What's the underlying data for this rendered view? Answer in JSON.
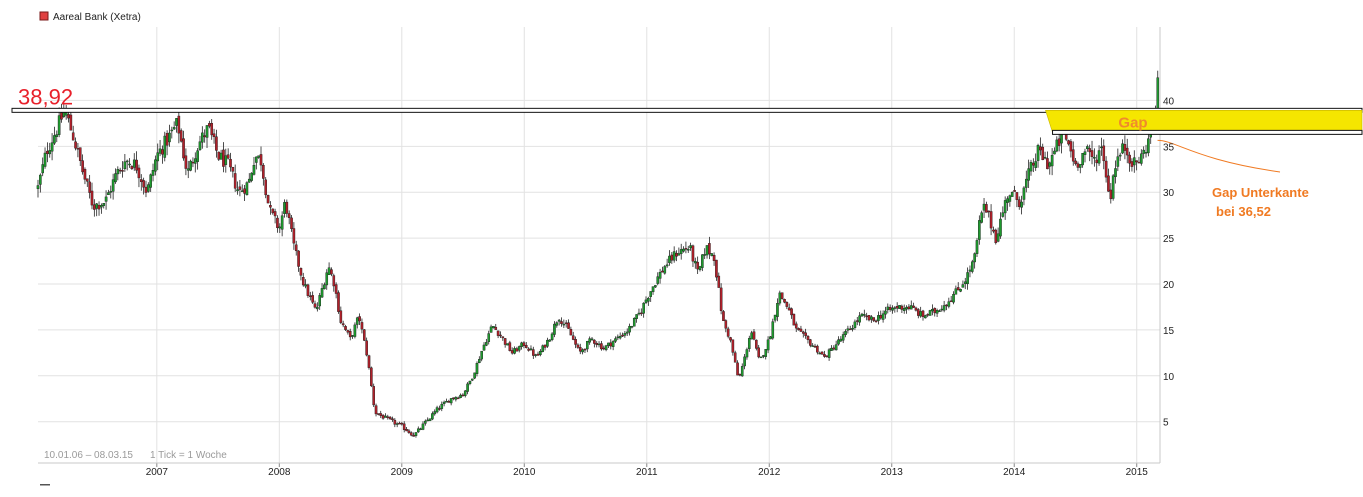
{
  "chart_data": {
    "type": "candlestick",
    "title": "Aareal Bank (Xetra)",
    "date_range": "10.01.06 – 08.03.15",
    "tick_info": "1 Tick = 1 Woche",
    "x_tick_labels": [
      "2007",
      "2008",
      "2009",
      "2010",
      "2011",
      "2012",
      "2013",
      "2014",
      "2015"
    ],
    "x_range": [
      2006.03,
      2015.19
    ],
    "y_tick_labels": [
      "5",
      "10",
      "15",
      "20",
      "25",
      "30",
      "35",
      "40"
    ],
    "y_range": [
      0.5,
      48
    ],
    "grid": true,
    "series_color_up": "#1e9a2e",
    "series_color_down": "#b0202a",
    "anchors": [
      [
        2006.03,
        30.5
      ],
      [
        2006.1,
        34.5
      ],
      [
        2006.17,
        36.5
      ],
      [
        2006.25,
        38.92
      ],
      [
        2006.32,
        36
      ],
      [
        2006.4,
        32
      ],
      [
        2006.48,
        28.5
      ],
      [
        2006.58,
        29
      ],
      [
        2006.67,
        32
      ],
      [
        2006.75,
        33.5
      ],
      [
        2006.83,
        33
      ],
      [
        2006.92,
        30
      ],
      [
        2007.0,
        34
      ],
      [
        2007.1,
        36
      ],
      [
        2007.17,
        37.5
      ],
      [
        2007.25,
        32
      ],
      [
        2007.33,
        35
      ],
      [
        2007.42,
        37
      ],
      [
        2007.5,
        34
      ],
      [
        2007.58,
        33
      ],
      [
        2007.67,
        30
      ],
      [
        2007.75,
        31
      ],
      [
        2007.8,
        34
      ],
      [
        2007.85,
        33.5
      ],
      [
        2007.92,
        28
      ],
      [
        2008.0,
        26
      ],
      [
        2008.05,
        29
      ],
      [
        2008.12,
        24
      ],
      [
        2008.2,
        20
      ],
      [
        2008.3,
        17
      ],
      [
        2008.4,
        22
      ],
      [
        2008.45,
        20
      ],
      [
        2008.5,
        16
      ],
      [
        2008.58,
        14
      ],
      [
        2008.65,
        16.5
      ],
      [
        2008.72,
        12
      ],
      [
        2008.78,
        6
      ],
      [
        2008.85,
        5.5
      ],
      [
        2008.92,
        5
      ],
      [
        2009.0,
        4.5
      ],
      [
        2009.1,
        3.5
      ],
      [
        2009.2,
        5
      ],
      [
        2009.3,
        6.5
      ],
      [
        2009.4,
        7.5
      ],
      [
        2009.5,
        8
      ],
      [
        2009.58,
        10
      ],
      [
        2009.66,
        13
      ],
      [
        2009.74,
        15.5
      ],
      [
        2009.8,
        14.5
      ],
      [
        2009.9,
        12.5
      ],
      [
        2010.0,
        13.5
      ],
      [
        2010.1,
        12
      ],
      [
        2010.2,
        14
      ],
      [
        2010.28,
        16.5
      ],
      [
        2010.36,
        15
      ],
      [
        2010.45,
        12.5
      ],
      [
        2010.55,
        14
      ],
      [
        2010.65,
        13
      ],
      [
        2010.75,
        14
      ],
      [
        2010.85,
        15
      ],
      [
        2010.95,
        17
      ],
      [
        2011.0,
        18.5
      ],
      [
        2011.08,
        20.5
      ],
      [
        2011.15,
        22
      ],
      [
        2011.25,
        23.5
      ],
      [
        2011.35,
        24
      ],
      [
        2011.42,
        21
      ],
      [
        2011.48,
        24
      ],
      [
        2011.55,
        23
      ],
      [
        2011.62,
        16
      ],
      [
        2011.68,
        14
      ],
      [
        2011.75,
        9.5
      ],
      [
        2011.8,
        12
      ],
      [
        2011.85,
        15
      ],
      [
        2011.92,
        11.5
      ],
      [
        2012.0,
        14
      ],
      [
        2012.08,
        19
      ],
      [
        2012.15,
        17.5
      ],
      [
        2012.22,
        15
      ],
      [
        2012.3,
        14
      ],
      [
        2012.38,
        13
      ],
      [
        2012.45,
        12
      ],
      [
        2012.55,
        13.5
      ],
      [
        2012.65,
        15
      ],
      [
        2012.75,
        16.5
      ],
      [
        2012.85,
        16
      ],
      [
        2012.95,
        17
      ],
      [
        2013.05,
        17.5
      ],
      [
        2013.15,
        17.5
      ],
      [
        2013.25,
        16.5
      ],
      [
        2013.35,
        17
      ],
      [
        2013.45,
        18
      ],
      [
        2013.55,
        19.5
      ],
      [
        2013.62,
        21
      ],
      [
        2013.68,
        23
      ],
      [
        2013.72,
        27
      ],
      [
        2013.76,
        28.5
      ],
      [
        2013.85,
        25
      ],
      [
        2013.95,
        30
      ],
      [
        2014.05,
        29
      ],
      [
        2014.12,
        32
      ],
      [
        2014.2,
        34.5
      ],
      [
        2014.28,
        33
      ],
      [
        2014.35,
        35
      ],
      [
        2014.4,
        36.5
      ],
      [
        2014.45,
        35
      ],
      [
        2014.5,
        33
      ],
      [
        2014.58,
        34.5
      ],
      [
        2014.65,
        33.5
      ],
      [
        2014.72,
        35
      ],
      [
        2014.78,
        29
      ],
      [
        2014.82,
        33
      ],
      [
        2014.9,
        35
      ],
      [
        2014.98,
        33
      ],
      [
        2015.05,
        34
      ],
      [
        2015.1,
        36
      ],
      [
        2015.14,
        37
      ],
      [
        2015.17,
        41.5
      ]
    ]
  },
  "annotations": {
    "level_value": "38,92",
    "level_price": 38.92,
    "gap_label": "Gap",
    "gap_low": 36.52,
    "gap_high": 38.92,
    "gap_start_x": 2014.28,
    "gap_color": "#f5e600",
    "gap_note_line1": "Gap Unterkante",
    "gap_note_line2": "bei 36,52",
    "level_color": "#e8202a",
    "note_color": "#f07a22"
  }
}
